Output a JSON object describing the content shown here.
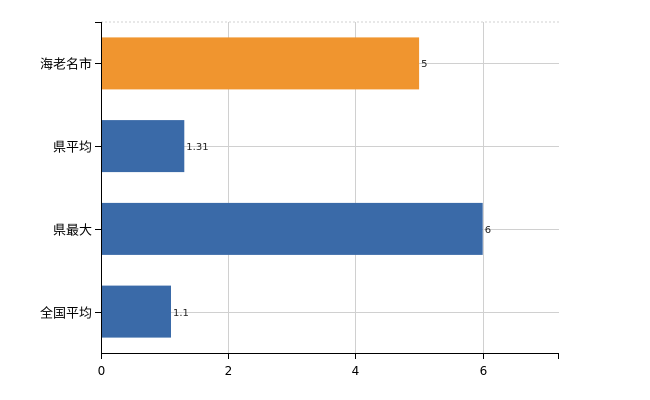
{
  "chart_data": {
    "type": "bar",
    "orientation": "horizontal",
    "categories": [
      "海老名市",
      "県平均",
      "県最大",
      "全国平均"
    ],
    "values": [
      5,
      1.31,
      6,
      1.1
    ],
    "data_labels": [
      "5",
      "1.31",
      "6",
      "1.1"
    ],
    "bar_colors": [
      "#f0952f",
      "#3a6aa8",
      "#3a6aa8",
      "#3a6aa8"
    ],
    "xlim": [
      0,
      7.2
    ],
    "x_ticks": [
      0,
      2,
      4,
      6
    ],
    "x_tick_labels": [
      "0",
      "2",
      "4",
      "6"
    ],
    "title": "",
    "xlabel": "",
    "ylabel": "",
    "grid": true,
    "legend": false
  }
}
